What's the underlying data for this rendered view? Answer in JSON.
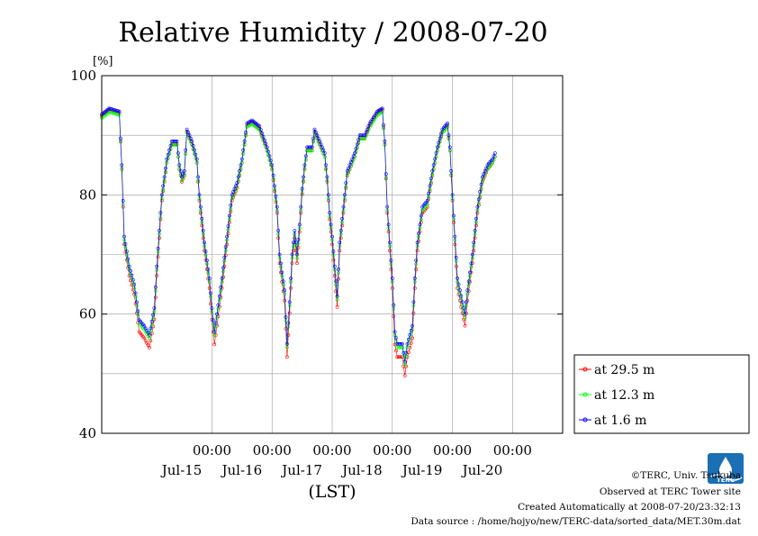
{
  "chart_data": {
    "type": "line",
    "title": "Relative Humidity / 2008-07-20",
    "ylabel_unit": "[%]",
    "xlabel": "(LST)",
    "ylim": [
      40,
      100
    ],
    "yticks": [
      40,
      60,
      80,
      100
    ],
    "y_gridlines": [
      50,
      60,
      70,
      80,
      90
    ],
    "xlim_hours": [
      -44,
      140
    ],
    "x_tick_hours": [
      0,
      24,
      48,
      72,
      96,
      120
    ],
    "x_tick_label": "00:00",
    "date_labels": [
      {
        "hour": -24,
        "label": "Jul-15"
      },
      {
        "hour": 0,
        "label": "Jul-16"
      },
      {
        "hour": 24,
        "label": "Jul-17"
      },
      {
        "hour": 48,
        "label": "Jul-18"
      },
      {
        "hour": 72,
        "label": "Jul-19"
      },
      {
        "hour": 96,
        "label": "Jul-20"
      }
    ],
    "grid": true,
    "legend_position": "right-bottom",
    "series": [
      {
        "name": "at 29.5 m",
        "color": "#ff0000",
        "offset": -1.2,
        "amp": 1.05
      },
      {
        "name": "at 12.3 m",
        "color": "#00ff00",
        "offset": -0.6,
        "amp": 1.0
      },
      {
        "name": "at 1.6 m",
        "color": "#0000ff",
        "offset": 0,
        "amp": 1.0
      }
    ],
    "key_points": [
      [
        -44,
        93.5
      ],
      [
        -41,
        94.5
      ],
      [
        -37,
        94
      ],
      [
        -36,
        85
      ],
      [
        -35,
        73
      ],
      [
        -33,
        68
      ],
      [
        -31,
        65
      ],
      [
        -29,
        59
      ],
      [
        -27,
        58
      ],
      [
        -25,
        56.5
      ],
      [
        -23,
        61
      ],
      [
        -22,
        68
      ],
      [
        -20,
        80
      ],
      [
        -18,
        86
      ],
      [
        -16,
        89
      ],
      [
        -14,
        89
      ],
      [
        -13,
        85
      ],
      [
        -12,
        83
      ],
      [
        -11,
        84
      ],
      [
        -10,
        91
      ],
      [
        -8,
        89
      ],
      [
        -6,
        86
      ],
      [
        -5,
        80
      ],
      [
        -3,
        72
      ],
      [
        -1,
        66
      ],
      [
        0,
        61
      ],
      [
        1,
        57
      ],
      [
        2,
        60
      ],
      [
        4,
        66
      ],
      [
        6,
        73
      ],
      [
        8,
        80
      ],
      [
        10,
        82
      ],
      [
        12,
        86
      ],
      [
        14,
        92
      ],
      [
        16,
        92.5
      ],
      [
        19,
        91.5
      ],
      [
        22,
        88
      ],
      [
        24,
        85
      ],
      [
        26,
        78
      ],
      [
        27,
        70
      ],
      [
        29,
        64
      ],
      [
        30,
        55
      ],
      [
        31,
        62
      ],
      [
        32,
        70
      ],
      [
        33,
        74
      ],
      [
        34,
        70
      ],
      [
        35,
        75
      ],
      [
        36,
        81
      ],
      [
        37,
        85
      ],
      [
        38,
        88
      ],
      [
        40,
        88
      ],
      [
        41,
        91
      ],
      [
        43,
        89
      ],
      [
        45,
        87
      ],
      [
        46,
        83
      ],
      [
        47,
        77
      ],
      [
        48,
        73
      ],
      [
        49,
        68
      ],
      [
        50,
        63
      ],
      [
        51,
        72
      ],
      [
        53,
        80
      ],
      [
        54,
        84
      ],
      [
        55,
        85
      ],
      [
        57,
        87
      ],
      [
        59,
        90
      ],
      [
        61,
        90
      ],
      [
        63,
        92
      ],
      [
        66,
        94
      ],
      [
        68,
        94.5
      ],
      [
        69,
        89
      ],
      [
        70,
        78
      ],
      [
        72,
        66
      ],
      [
        73,
        57
      ],
      [
        74,
        55
      ],
      [
        76,
        55
      ],
      [
        77,
        52
      ],
      [
        78,
        55
      ],
      [
        80,
        58
      ],
      [
        81,
        66
      ],
      [
        82,
        72
      ],
      [
        84,
        78
      ],
      [
        86,
        79
      ],
      [
        88,
        84
      ],
      [
        90,
        88
      ],
      [
        92,
        91
      ],
      [
        94,
        92
      ],
      [
        95,
        88
      ],
      [
        96,
        80
      ],
      [
        97,
        73
      ],
      [
        98,
        66
      ],
      [
        100,
        62
      ],
      [
        101,
        60
      ],
      [
        102,
        64
      ],
      [
        104,
        70
      ],
      [
        106,
        78
      ],
      [
        108,
        83
      ],
      [
        110,
        85
      ],
      [
        112,
        86
      ],
      [
        113,
        87
      ]
    ]
  },
  "legend": {
    "items": [
      "at 29.5 m",
      "at 12.3 m",
      "at 1.6 m"
    ]
  },
  "credits": {
    "copyright": "©TERC, Univ. Tsukuba",
    "observed": "Observed at TERC Tower site",
    "created": "Created Automatically at 2008-07-20/23:32:13",
    "source": "Data source : /home/hojyo/new/TERC-data/sorted_data/MET.30m.dat"
  },
  "logo": {
    "text": "TERC",
    "color": "#1a6fb5"
  }
}
